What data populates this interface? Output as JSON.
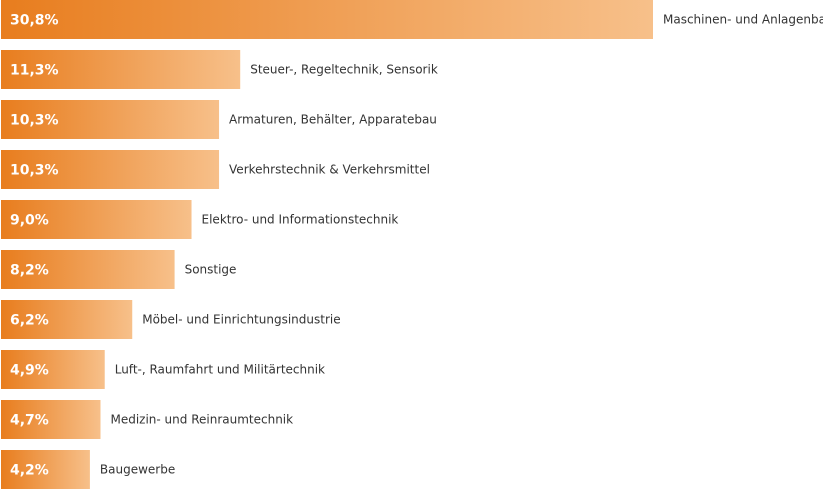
{
  "chart_data": {
    "type": "bar",
    "orientation": "horizontal",
    "title": "",
    "xlabel": "",
    "ylabel": "",
    "value_suffix": "%",
    "xlim": [
      0,
      30.8
    ],
    "grid": false,
    "legend": "none",
    "categories": [
      "Maschinen- und Anlagenbau",
      "Steuer-, Regeltechnik, Sensorik",
      "Armaturen, Behälter, Apparatebau",
      "Verkehrstechnik & Verkehrsmittel",
      "Elektro- und Informationstechnik",
      "Sonstige",
      "Möbel- und Einrichtungsindustrie",
      "Luft-, Raumfahrt und Militärtechnik",
      "Medizin- und Reinraumtechnik",
      "Baugewerbe"
    ],
    "values": [
      30.8,
      11.3,
      10.3,
      10.3,
      9.0,
      8.2,
      6.2,
      4.9,
      4.7,
      4.2
    ],
    "value_labels": [
      "30,8%",
      "11,3%",
      "10,3%",
      "10,3%",
      "9,0%",
      "8,2%",
      "6,2%",
      "4,9%",
      "4,7%",
      "4,2%"
    ],
    "colors": {
      "gradient_start": "#e87d1e",
      "gradient_end": "#f7c08a"
    }
  }
}
